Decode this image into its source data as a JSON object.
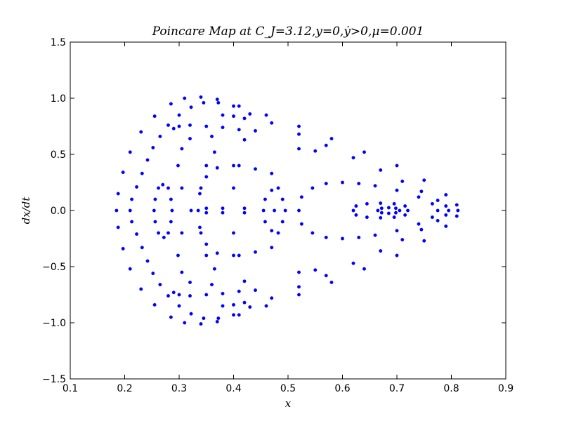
{
  "chart_data": {
    "type": "scatter",
    "title": "Poincare Map at C_J=3.12,y=0,ẏ>0,μ=0.001",
    "xlabel": "x",
    "ylabel": "dx/dt",
    "xlim": [
      0.1,
      0.9
    ],
    "ylim": [
      -1.5,
      1.5
    ],
    "xticks": [
      0.1,
      0.2,
      0.3,
      0.4,
      0.5,
      0.6,
      0.7,
      0.8,
      0.9
    ],
    "yticks": [
      -1.5,
      -1.0,
      -0.5,
      0.0,
      0.5,
      1.0,
      1.5
    ],
    "xtick_labels": [
      "0.1",
      "0.2",
      "0.3",
      "0.4",
      "0.5",
      "0.6",
      "0.7",
      "0.8",
      "0.9"
    ],
    "ytick_labels": [
      "−1.5",
      "−1.0",
      "−0.5",
      "0.0",
      "0.5",
      "1.0",
      "1.5"
    ],
    "grid": false,
    "marker_color": "#0000ff",
    "series": [
      {
        "points": [
          [
            0.21,
            0.0
          ],
          [
            0.213,
            0.1
          ],
          [
            0.213,
            -0.1
          ],
          [
            0.222,
            0.21
          ],
          [
            0.222,
            -0.21
          ],
          [
            0.232,
            0.33
          ],
          [
            0.232,
            -0.33
          ],
          [
            0.242,
            0.45
          ],
          [
            0.242,
            -0.45
          ],
          [
            0.252,
            0.56
          ],
          [
            0.252,
            -0.56
          ],
          [
            0.265,
            0.66
          ],
          [
            0.265,
            -0.66
          ],
          [
            0.28,
            0.76
          ],
          [
            0.28,
            -0.76
          ],
          [
            0.3,
            0.85
          ],
          [
            0.3,
            -0.85
          ],
          [
            0.322,
            0.92
          ],
          [
            0.322,
            -0.92
          ],
          [
            0.345,
            0.96
          ],
          [
            0.345,
            -0.96
          ],
          [
            0.372,
            0.96
          ],
          [
            0.372,
            -0.96
          ],
          [
            0.4,
            0.93
          ],
          [
            0.4,
            -0.93
          ],
          [
            0.43,
            0.86
          ],
          [
            0.43,
            -0.86
          ],
          [
            0.47,
            0.78
          ],
          [
            0.47,
            -0.78
          ],
          [
            0.52,
            0.68
          ],
          [
            0.52,
            -0.68
          ],
          [
            0.57,
            0.58
          ],
          [
            0.57,
            -0.58
          ],
          [
            0.62,
            0.47
          ],
          [
            0.62,
            -0.47
          ],
          [
            0.67,
            0.36
          ],
          [
            0.67,
            -0.36
          ],
          [
            0.71,
            0.26
          ],
          [
            0.71,
            -0.26
          ],
          [
            0.745,
            0.17
          ],
          [
            0.745,
            -0.17
          ],
          [
            0.775,
            0.09
          ],
          [
            0.775,
            -0.09
          ],
          [
            0.79,
            0.04
          ],
          [
            0.79,
            -0.04
          ],
          [
            0.795,
            0.0
          ],
          [
            0.185,
            0.0
          ],
          [
            0.188,
            0.15
          ],
          [
            0.188,
            -0.15
          ],
          [
            0.197,
            0.34
          ],
          [
            0.197,
            -0.34
          ],
          [
            0.21,
            0.52
          ],
          [
            0.21,
            -0.52
          ],
          [
            0.23,
            0.7
          ],
          [
            0.23,
            -0.7
          ],
          [
            0.255,
            0.84
          ],
          [
            0.255,
            -0.84
          ],
          [
            0.285,
            0.95
          ],
          [
            0.285,
            -0.95
          ],
          [
            0.31,
            1.0
          ],
          [
            0.31,
            -1.0
          ],
          [
            0.34,
            1.01
          ],
          [
            0.34,
            -1.01
          ],
          [
            0.37,
            0.99
          ],
          [
            0.37,
            -0.99
          ],
          [
            0.41,
            0.93
          ],
          [
            0.41,
            -0.93
          ],
          [
            0.46,
            0.85
          ],
          [
            0.46,
            -0.85
          ],
          [
            0.52,
            0.75
          ],
          [
            0.52,
            -0.75
          ],
          [
            0.58,
            0.64
          ],
          [
            0.58,
            -0.64
          ],
          [
            0.64,
            0.52
          ],
          [
            0.64,
            -0.52
          ],
          [
            0.7,
            0.4
          ],
          [
            0.7,
            -0.4
          ],
          [
            0.75,
            0.27
          ],
          [
            0.75,
            -0.27
          ],
          [
            0.79,
            0.14
          ],
          [
            0.79,
            -0.14
          ],
          [
            0.81,
            0.05
          ],
          [
            0.81,
            -0.05
          ],
          [
            0.812,
            0.0
          ],
          [
            0.27,
            0.23
          ],
          [
            0.28,
            0.2
          ],
          [
            0.285,
            0.1
          ],
          [
            0.287,
            0.0
          ],
          [
            0.285,
            -0.1
          ],
          [
            0.28,
            -0.2
          ],
          [
            0.272,
            -0.24
          ],
          [
            0.262,
            -0.2
          ],
          [
            0.256,
            -0.1
          ],
          [
            0.254,
            0.0
          ],
          [
            0.256,
            0.1
          ],
          [
            0.262,
            0.2
          ],
          [
            0.322,
            0.0
          ],
          [
            0.305,
            0.2
          ],
          [
            0.298,
            0.4
          ],
          [
            0.305,
            0.55
          ],
          [
            0.32,
            0.64
          ],
          [
            0.36,
            0.66
          ],
          [
            0.42,
            0.63
          ],
          [
            0.305,
            -0.2
          ],
          [
            0.298,
            -0.4
          ],
          [
            0.305,
            -0.55
          ],
          [
            0.32,
            -0.64
          ],
          [
            0.36,
            -0.66
          ],
          [
            0.42,
            -0.63
          ],
          [
            0.34,
            0.2
          ],
          [
            0.35,
            0.4
          ],
          [
            0.365,
            0.52
          ],
          [
            0.34,
            -0.2
          ],
          [
            0.35,
            -0.4
          ],
          [
            0.365,
            -0.52
          ],
          [
            0.335,
            0.0
          ],
          [
            0.338,
            0.15
          ],
          [
            0.338,
            -0.15
          ],
          [
            0.35,
            0.3
          ],
          [
            0.35,
            -0.3
          ],
          [
            0.37,
            0.38
          ],
          [
            0.37,
            -0.38
          ],
          [
            0.4,
            0.4
          ],
          [
            0.4,
            -0.4
          ],
          [
            0.44,
            0.37
          ],
          [
            0.44,
            -0.37
          ],
          [
            0.47,
            0.33
          ],
          [
            0.47,
            -0.33
          ],
          [
            0.455,
            0.0
          ],
          [
            0.458,
            0.1
          ],
          [
            0.458,
            -0.1
          ],
          [
            0.47,
            0.18
          ],
          [
            0.47,
            -0.18
          ],
          [
            0.482,
            0.2
          ],
          [
            0.482,
            -0.2
          ],
          [
            0.49,
            0.1
          ],
          [
            0.49,
            -0.1
          ],
          [
            0.495,
            0.0
          ],
          [
            0.475,
            0.0
          ],
          [
            0.52,
            0.0
          ],
          [
            0.525,
            0.12
          ],
          [
            0.525,
            -0.12
          ],
          [
            0.545,
            0.2
          ],
          [
            0.545,
            -0.2
          ],
          [
            0.57,
            0.24
          ],
          [
            0.57,
            -0.24
          ],
          [
            0.6,
            0.25
          ],
          [
            0.6,
            -0.25
          ],
          [
            0.63,
            0.24
          ],
          [
            0.63,
            -0.24
          ],
          [
            0.66,
            0.22
          ],
          [
            0.66,
            -0.22
          ],
          [
            0.7,
            0.18
          ],
          [
            0.7,
            -0.18
          ],
          [
            0.74,
            0.12
          ],
          [
            0.74,
            -0.12
          ],
          [
            0.765,
            0.06
          ],
          [
            0.765,
            -0.06
          ],
          [
            0.775,
            0.0
          ],
          [
            0.62,
            0.0
          ],
          [
            0.625,
            0.04
          ],
          [
            0.625,
            -0.04
          ],
          [
            0.645,
            0.06
          ],
          [
            0.645,
            -0.06
          ],
          [
            0.67,
            0.065
          ],
          [
            0.67,
            -0.065
          ],
          [
            0.695,
            0.06
          ],
          [
            0.695,
            -0.06
          ],
          [
            0.715,
            0.04
          ],
          [
            0.715,
            -0.04
          ],
          [
            0.72,
            0.0
          ],
          [
            0.665,
            0.0
          ],
          [
            0.672,
            0.02
          ],
          [
            0.672,
            -0.02
          ],
          [
            0.685,
            0.025
          ],
          [
            0.685,
            -0.025
          ],
          [
            0.698,
            0.02
          ],
          [
            0.698,
            -0.02
          ],
          [
            0.705,
            0.0
          ],
          [
            0.29,
            0.73
          ],
          [
            0.3,
            0.75
          ],
          [
            0.32,
            0.76
          ],
          [
            0.35,
            0.75
          ],
          [
            0.38,
            0.74
          ],
          [
            0.41,
            0.72
          ],
          [
            0.44,
            0.71
          ],
          [
            0.29,
            -0.73
          ],
          [
            0.3,
            -0.75
          ],
          [
            0.32,
            -0.76
          ],
          [
            0.35,
            -0.75
          ],
          [
            0.38,
            -0.74
          ],
          [
            0.41,
            -0.72
          ],
          [
            0.44,
            -0.71
          ],
          [
            0.35,
            0.02
          ],
          [
            0.35,
            -0.02
          ],
          [
            0.38,
            0.02
          ],
          [
            0.38,
            -0.02
          ],
          [
            0.42,
            0.02
          ],
          [
            0.42,
            -0.02
          ],
          [
            0.4,
            0.2
          ],
          [
            0.4,
            -0.2
          ],
          [
            0.41,
            0.4
          ],
          [
            0.41,
            -0.4
          ],
          [
            0.38,
            0.85
          ],
          [
            0.4,
            0.84
          ],
          [
            0.42,
            0.82
          ],
          [
            0.38,
            -0.85
          ],
          [
            0.4,
            -0.84
          ],
          [
            0.42,
            -0.82
          ],
          [
            0.52,
            0.55
          ],
          [
            0.55,
            0.53
          ],
          [
            0.52,
            -0.55
          ],
          [
            0.55,
            -0.53
          ]
        ]
      }
    ]
  }
}
